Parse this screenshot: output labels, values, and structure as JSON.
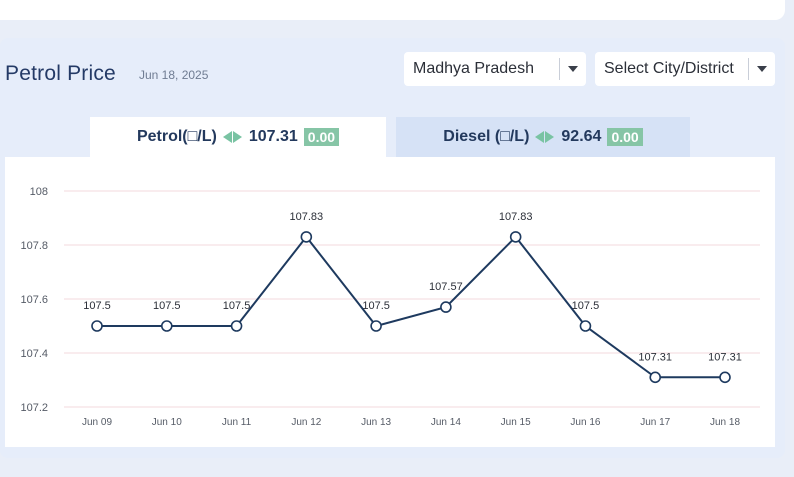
{
  "header": {
    "title": "Petrol Price",
    "date": "Jun 18, 2025"
  },
  "filters": {
    "state": "Madhya Pradesh",
    "city_placeholder": "Select City/District"
  },
  "tabs": [
    {
      "label": "Petrol(□/L)",
      "price": "107.31",
      "change": "0.00",
      "active": true
    },
    {
      "label": "Diesel (□/L)",
      "price": "92.64",
      "change": "0.00",
      "active": false
    }
  ],
  "chart_data": {
    "type": "line",
    "x": [
      "Jun 09",
      "Jun 10",
      "Jun 11",
      "Jun 12",
      "Jun 13",
      "Jun 14",
      "Jun 15",
      "Jun 16",
      "Jun 17",
      "Jun 18"
    ],
    "y": [
      107.5,
      107.5,
      107.5,
      107.83,
      107.5,
      107.57,
      107.83,
      107.5,
      107.31,
      107.31
    ],
    "labels": [
      "107.5",
      "107.5",
      "107.5",
      "107.83",
      "107.5",
      "107.57",
      "107.83",
      "107.5",
      "107.31",
      "107.31"
    ],
    "y_ticks": [
      "108",
      "107.8",
      "107.6",
      "107.4",
      "107.2"
    ],
    "ylim": [
      107.2,
      108
    ],
    "grid": true,
    "line_color": "#1e3a5f",
    "grid_color": "#f3d9de"
  }
}
